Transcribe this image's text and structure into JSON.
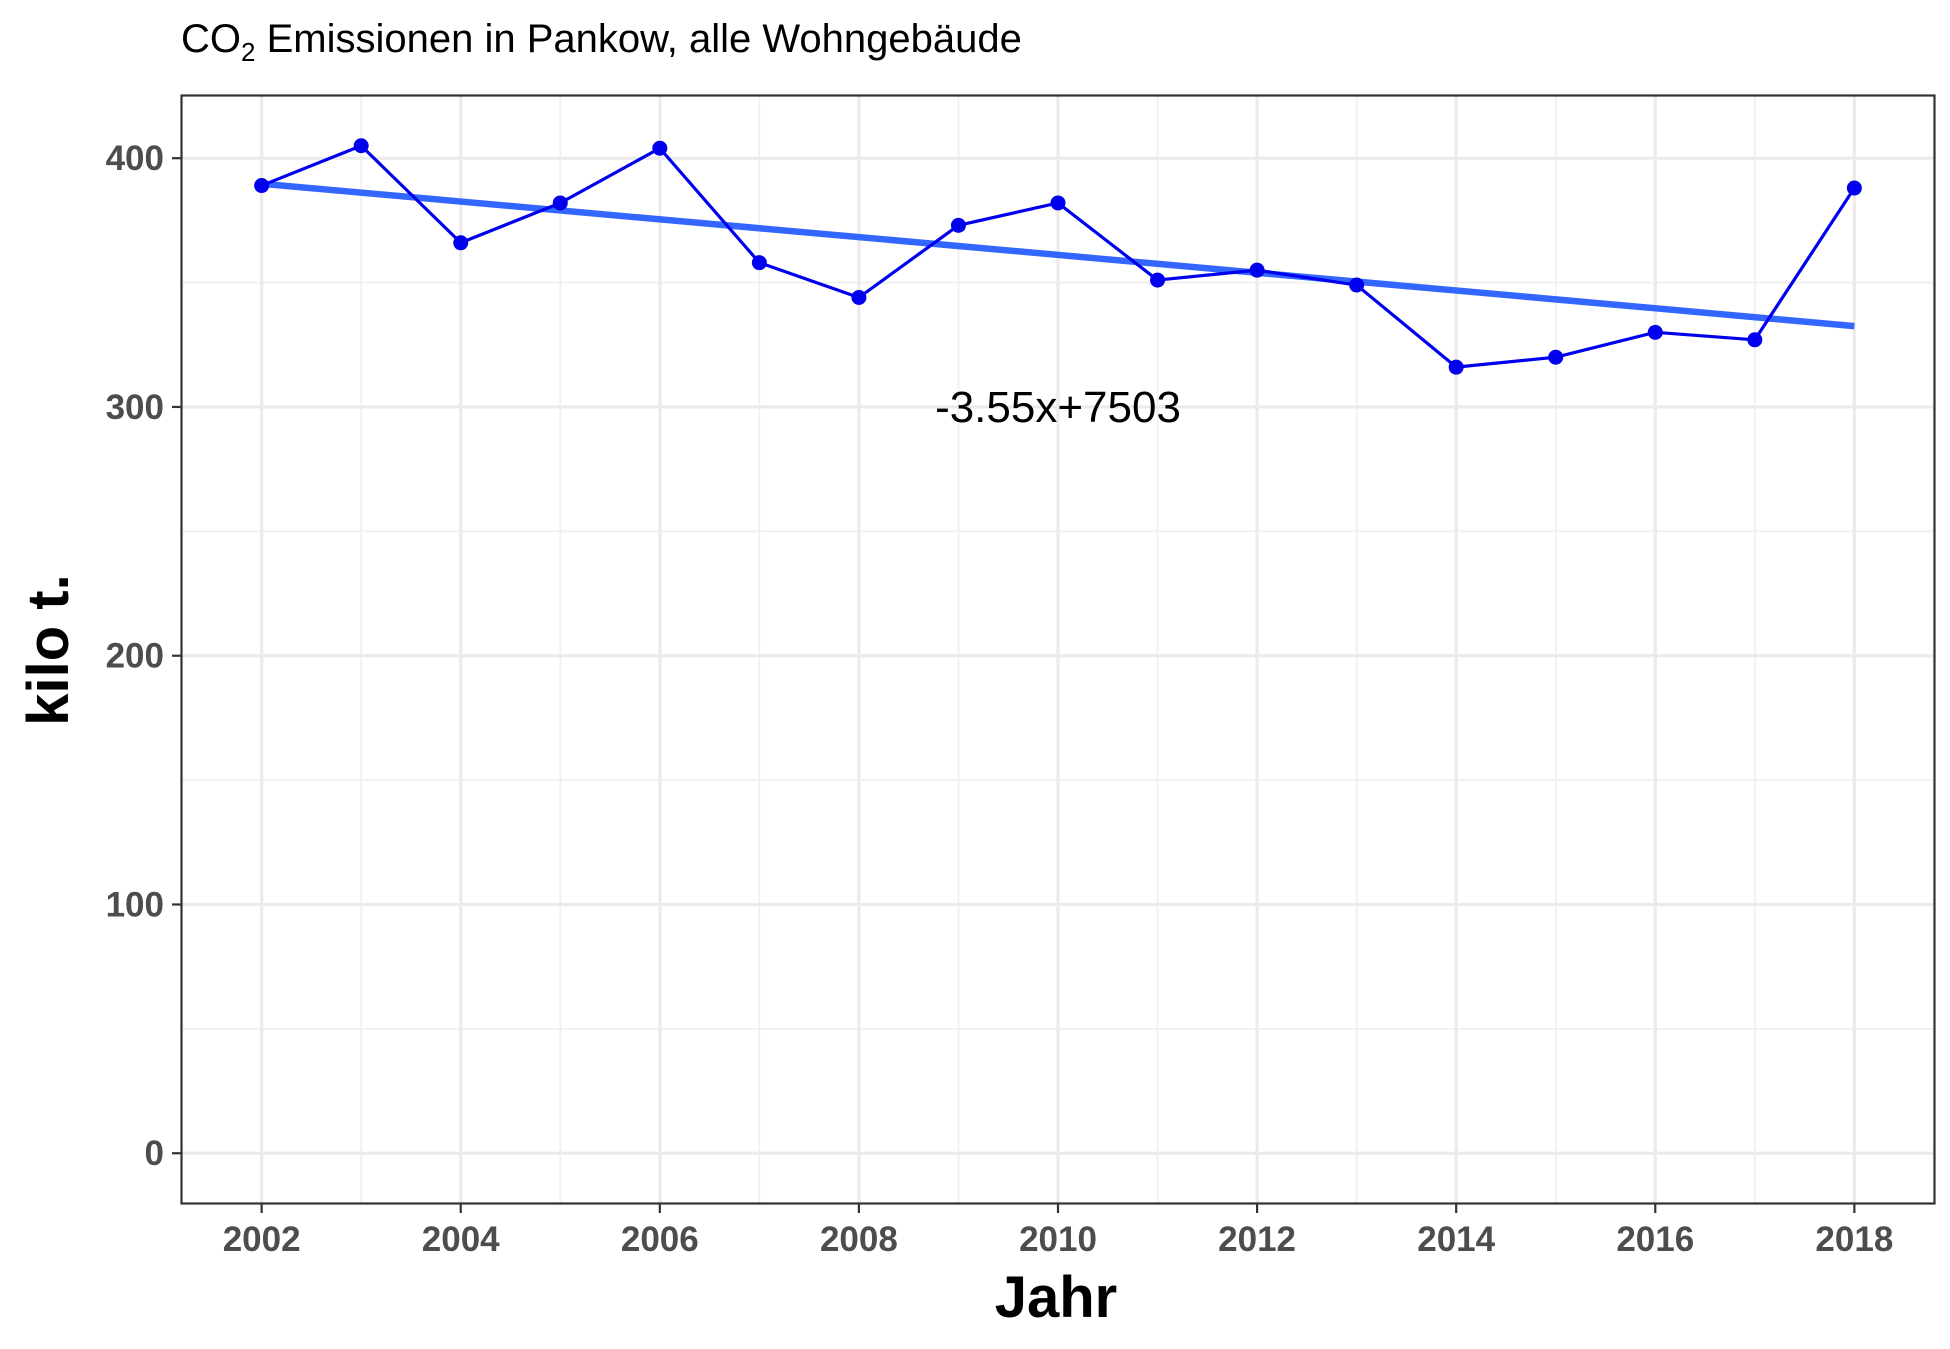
{
  "chart_data": {
    "type": "line",
    "title_prefix": "CO",
    "title_subscript": "2",
    "title_rest": " Emissionen in Pankow, alle Wohngebäude",
    "xlabel": "Jahr",
    "ylabel": "kilo t.",
    "xlim": [
      2001.2,
      2018.8
    ],
    "ylim": [
      -20,
      425
    ],
    "x_ticks": [
      2002,
      2004,
      2006,
      2008,
      2010,
      2012,
      2014,
      2016,
      2018
    ],
    "y_ticks": [
      0,
      100,
      200,
      300,
      400
    ],
    "grid": true,
    "series": [
      {
        "x": [
          2002,
          2003,
          2004,
          2005,
          2006,
          2007,
          2008,
          2009,
          2010,
          2011,
          2012,
          2013,
          2014,
          2015,
          2016,
          2017,
          2018
        ],
        "values": [
          389,
          405,
          366,
          382,
          404,
          358,
          344,
          373,
          382,
          351,
          355,
          349,
          316,
          320,
          330,
          327,
          388
        ],
        "color": "#0000ee"
      }
    ],
    "trend": {
      "slope": -3.55,
      "intercept": 7503,
      "x_range": [
        2002,
        2018
      ],
      "color": "#3366ff"
    },
    "annotation": {
      "text": "-3.55x+7503",
      "x": 2010,
      "y": 300
    }
  }
}
